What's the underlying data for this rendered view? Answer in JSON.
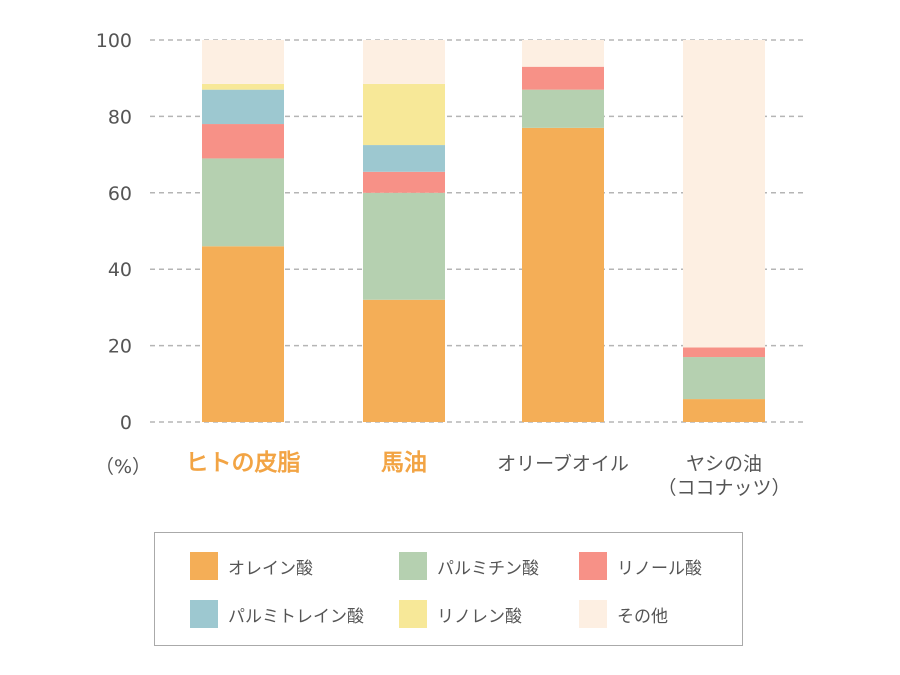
{
  "chart_data": {
    "type": "bar",
    "stacked": true,
    "ylim": [
      0,
      100
    ],
    "yticks": [
      0,
      20,
      40,
      60,
      80,
      100
    ],
    "grid": true,
    "ylabel": "（%）",
    "categories": [
      {
        "label": [
          "ヒトの皮脂"
        ],
        "highlight": true
      },
      {
        "label": [
          "馬油"
        ],
        "highlight": true
      },
      {
        "label": [
          "オリーブオイル"
        ],
        "highlight": false
      },
      {
        "label": [
          "ヤシの油",
          "（ココナッツ）"
        ],
        "highlight": false
      }
    ],
    "series": [
      {
        "name": "オレイン酸",
        "color": "#f4ae57",
        "values": [
          46,
          32,
          77,
          6
        ]
      },
      {
        "name": "パルミチン酸",
        "color": "#b5d0b0",
        "values": [
          23,
          28,
          10,
          11
        ]
      },
      {
        "name": "リノール酸",
        "color": "#f79187",
        "values": [
          9,
          5.5,
          6,
          2.5
        ]
      },
      {
        "name": "パルミトレイン酸",
        "color": "#9dc8d0",
        "values": [
          9,
          7,
          0,
          0
        ]
      },
      {
        "name": "リノレン酸",
        "color": "#f7e898",
        "values": [
          1.5,
          16,
          0,
          0
        ]
      },
      {
        "name": "その他",
        "color": "#fdefe2",
        "values": [
          11.5,
          11.5,
          7,
          80.5
        ]
      }
    ],
    "legend_position": "bottom"
  }
}
